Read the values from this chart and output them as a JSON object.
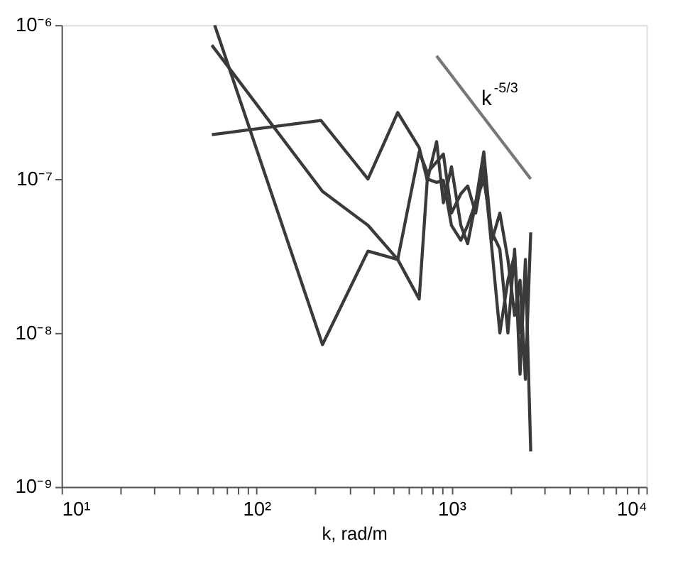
{
  "chart_data": {
    "type": "line",
    "xlabel": "k, rad/m",
    "log": "xy",
    "grid": false,
    "marker": "none",
    "line_style": "solid",
    "xlim": [
      10,
      10000
    ],
    "ylim": [
      1e-09,
      1e-06
    ],
    "xticks": [
      {
        "value": 10,
        "label": "10¹"
      },
      {
        "value": 20,
        "label": null
      },
      {
        "value": 30,
        "label": null
      },
      {
        "value": 40,
        "label": null
      },
      {
        "value": 50,
        "label": null
      },
      {
        "value": 60,
        "label": null
      },
      {
        "value": 70,
        "label": null
      },
      {
        "value": 80,
        "label": null
      },
      {
        "value": 90,
        "label": null
      },
      {
        "value": 100,
        "label": "10²"
      },
      {
        "value": 200,
        "label": null
      },
      {
        "value": 300,
        "label": null
      },
      {
        "value": 400,
        "label": null
      },
      {
        "value": 500,
        "label": null
      },
      {
        "value": 600,
        "label": null
      },
      {
        "value": 700,
        "label": null
      },
      {
        "value": 800,
        "label": null
      },
      {
        "value": 900,
        "label": null
      },
      {
        "value": 1000,
        "label": "10³"
      },
      {
        "value": 2000,
        "label": null
      },
      {
        "value": 3000,
        "label": null
      },
      {
        "value": 4000,
        "label": null
      },
      {
        "value": 5000,
        "label": null
      },
      {
        "value": 6000,
        "label": null
      },
      {
        "value": 7000,
        "label": null
      },
      {
        "value": 8000,
        "label": null
      },
      {
        "value": 9000,
        "label": null
      },
      {
        "value": 10000,
        "label": "10⁴"
      }
    ],
    "yticks": [
      {
        "value": 1e-09,
        "label": "10⁻⁹"
      },
      {
        "value": 1e-08,
        "label": "10⁻⁸"
      },
      {
        "value": 1e-07,
        "label": "10⁻⁷"
      },
      {
        "value": 1e-06,
        "label": "10⁻⁶"
      }
    ],
    "series": [
      {
        "color": "#3a3a3a",
        "x": [
          59,
          214,
          373,
          530,
          683,
          752,
          839,
          909,
          1000,
          1117,
          1211,
          1331,
          1465,
          1612,
          1771,
          1948,
          2108,
          2248,
          2395,
          2550
        ],
        "values": [
          1.94e-07,
          2.4e-07,
          1e-07,
          2.7e-07,
          1.6e-07,
          9.8e-08,
          1.75e-07,
          7e-08,
          1.2e-07,
          5e-08,
          3.8e-08,
          7e-08,
          1.5e-07,
          4e-08,
          6e-08,
          3e-08,
          1.3e-08,
          2.2e-08,
          5e-09,
          4.5e-08
        ]
      },
      {
        "color": "#3a3a3a",
        "x": [
          59,
          218,
          373,
          530,
          683,
          752,
          909,
          1000,
          1117,
          1211,
          1331,
          1465,
          1612,
          1771,
          1948,
          2108,
          2248,
          2395
        ],
        "values": [
          7.4e-07,
          8.3e-08,
          5e-08,
          3e-08,
          1.5e-07,
          1.1e-07,
          1.45e-07,
          6e-08,
          8e-08,
          9e-08,
          6e-08,
          1.2e-07,
          3.5e-08,
          1e-08,
          2.2e-08,
          3.2e-08,
          1e-08,
          2.1e-08
        ]
      },
      {
        "color": "#3a3a3a",
        "x": [
          61,
          218,
          373,
          530,
          683,
          752,
          839,
          909,
          1000,
          1117,
          1211,
          1465,
          1612,
          1771,
          1948,
          2108,
          2248,
          2395,
          2550
        ],
        "values": [
          1e-06,
          8.4e-09,
          3.4e-08,
          3e-08,
          1.66e-08,
          1e-07,
          9.5e-08,
          9.8e-08,
          5e-08,
          4e-08,
          5e-08,
          1e-07,
          4.5e-08,
          3.5e-08,
          1e-08,
          3.5e-08,
          5.4e-09,
          3e-08,
          1.7e-09
        ]
      },
      {
        "color": "#777777",
        "x": [
          839,
          2550
        ],
        "values": [
          6.3e-07,
          1e-07
        ]
      }
    ],
    "annotations": [
      "k$^{-5/3}$"
    ]
  }
}
